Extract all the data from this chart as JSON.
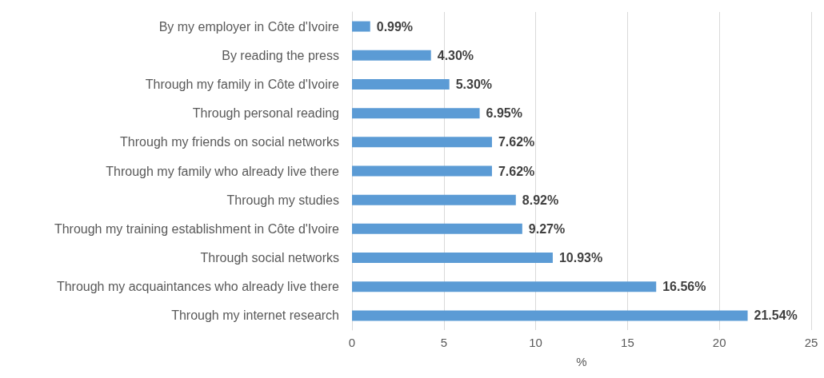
{
  "chart_data": {
    "type": "bar",
    "orientation": "horizontal",
    "xlabel": "%",
    "categories": [
      "By my employer in Côte d'Ivoire",
      "By reading the press",
      "Through my family in Côte d'Ivoire",
      "Through personal reading",
      "Through my friends on social networks",
      "Through my family who already live there",
      "Through my studies",
      "Through my training establishment in Côte d'Ivoire",
      "Through social networks",
      "Through my acquaintances who already live there",
      "Through my internet research"
    ],
    "values": [
      0.99,
      4.3,
      5.3,
      6.95,
      7.62,
      7.62,
      8.92,
      9.27,
      10.93,
      16.56,
      21.54
    ],
    "value_labels": [
      "0.99%",
      "4.30%",
      "5.30%",
      "6.95%",
      "7.62%",
      "7.62%",
      "8.92%",
      "9.27%",
      "10.93%",
      "16.56%",
      "21.54%"
    ],
    "color": "#5b9bd5",
    "xlim": [
      0,
      25
    ],
    "xticks": [
      0,
      5,
      10,
      15,
      20,
      25
    ],
    "grid": "x"
  }
}
